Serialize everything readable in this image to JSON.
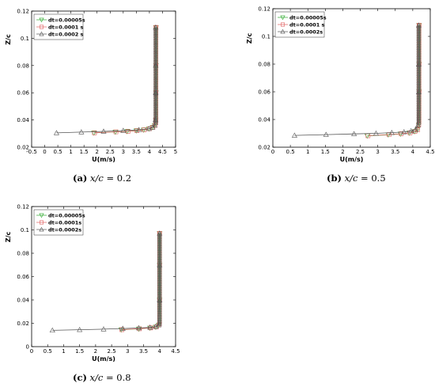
{
  "chart_data": [
    {
      "type": "scatter",
      "caption": {
        "tag": "(a)",
        "var": "x/c",
        "rest": " = 0.2"
      },
      "xlabel": "U(m/s)",
      "ylabel": "Z/c",
      "xlim": [
        -0.5,
        5
      ],
      "ylim": [
        0.02,
        0.12
      ],
      "xticks": [
        "-0.5",
        "0",
        "0.5",
        "1",
        "1.5",
        "2",
        "2.5",
        "3",
        "3.5",
        "4",
        "4.5",
        "5"
      ],
      "yticks": [
        "0.02",
        "0.04",
        "0.06",
        "0.08",
        "0.1",
        "0.12"
      ],
      "legend_position": "top-left",
      "series": [
        {
          "name": "dt=0.00005s",
          "color": "#2eaa2e",
          "marker": "triangle-down",
          "x": [
            1.88,
            2.7,
            3.15,
            3.5,
            3.78,
            3.98,
            4.12,
            4.2,
            4.24,
            4.25,
            4.25,
            4.25
          ],
          "y": [
            0.0305,
            0.0312,
            0.0316,
            0.0321,
            0.0327,
            0.0335,
            0.0345,
            0.036,
            0.04,
            0.06,
            0.08,
            0.108
          ]
        },
        {
          "name": "dt=0.0001 s",
          "color": "#e06060",
          "marker": "square",
          "x": [
            1.9,
            2.72,
            3.18,
            3.52,
            3.8,
            4.0,
            4.13,
            4.21,
            4.24,
            4.25,
            4.25,
            4.25
          ],
          "y": [
            0.0306,
            0.0313,
            0.0317,
            0.0322,
            0.0328,
            0.0336,
            0.0346,
            0.036,
            0.04,
            0.06,
            0.08,
            0.108
          ]
        },
        {
          "name": "dt=0.0002 s",
          "color": "#555555",
          "marker": "triangle",
          "x": [
            0.45,
            1.4,
            2.25,
            3.0,
            3.6,
            3.98,
            4.12,
            4.2,
            4.23,
            4.24,
            4.24,
            4.24
          ],
          "y": [
            0.0305,
            0.0311,
            0.0316,
            0.0322,
            0.0328,
            0.0336,
            0.0346,
            0.036,
            0.04,
            0.06,
            0.08,
            0.108
          ]
        }
      ]
    },
    {
      "type": "scatter",
      "caption": {
        "tag": "(b)",
        "var": "x/c",
        "rest": " = 0.5"
      },
      "xlabel": "U(m/s)",
      "ylabel": "Z/c",
      "xlim": [
        0,
        4.5
      ],
      "ylim": [
        0.02,
        0.12
      ],
      "xticks": [
        "0",
        "0.5",
        "1",
        "1.5",
        "2",
        "2.5",
        "3",
        "3.5",
        "4",
        "4.5"
      ],
      "yticks": [
        "0.02",
        "0.04",
        "0.06",
        "0.08",
        "0.1",
        "0.12"
      ],
      "legend_position": "top-left",
      "series": [
        {
          "name": "dt=0.00005s",
          "color": "#2eaa2e",
          "marker": "triangle-down",
          "x": [
            2.7,
            3.3,
            3.65,
            3.9,
            4.05,
            4.13,
            4.17,
            4.18,
            4.18,
            4.18
          ],
          "y": [
            0.0282,
            0.029,
            0.0296,
            0.0303,
            0.0313,
            0.0325,
            0.036,
            0.06,
            0.08,
            0.108
          ]
        },
        {
          "name": "dt=0.0001 s",
          "color": "#e06060",
          "marker": "square",
          "x": [
            2.72,
            3.32,
            3.67,
            3.92,
            4.06,
            4.14,
            4.17,
            4.18,
            4.18,
            4.18
          ],
          "y": [
            0.0283,
            0.0291,
            0.0297,
            0.0304,
            0.0314,
            0.0326,
            0.036,
            0.06,
            0.08,
            0.108
          ]
        },
        {
          "name": "dt=0.0002s",
          "color": "#555555",
          "marker": "triangle",
          "x": [
            0.62,
            1.52,
            2.32,
            2.95,
            3.4,
            3.75,
            3.95,
            4.08,
            4.15,
            4.17,
            4.17,
            4.17
          ],
          "y": [
            0.0285,
            0.0291,
            0.0296,
            0.03,
            0.0305,
            0.031,
            0.0317,
            0.0328,
            0.036,
            0.06,
            0.08,
            0.108
          ]
        }
      ]
    },
    {
      "type": "scatter",
      "caption": {
        "tag": "(c)",
        "var": "x/c",
        "rest": " = 0.8"
      },
      "xlabel": "U(m/s)",
      "ylabel": "Z/c",
      "xlim": [
        0,
        4.5
      ],
      "ylim": [
        0,
        0.12
      ],
      "xticks": [
        "0",
        "0.5",
        "1",
        "1.5",
        "2",
        "2.5",
        "3",
        "3.5",
        "4",
        "4.5"
      ],
      "yticks": [
        "0",
        "0.02",
        "0.04",
        "0.06",
        "0.08",
        "0.1",
        "0.12"
      ],
      "legend_position": "top-left",
      "series": [
        {
          "name": "dt=0.00005s",
          "color": "#2eaa2e",
          "marker": "triangle-down",
          "x": [
            2.8,
            3.35,
            3.7,
            3.88,
            3.97,
            4.0,
            4.0,
            4.0
          ],
          "y": [
            0.0145,
            0.0152,
            0.016,
            0.0168,
            0.0185,
            0.04,
            0.07,
            0.097
          ]
        },
        {
          "name": "dt=0.0001s",
          "color": "#e06060",
          "marker": "square",
          "x": [
            2.82,
            3.37,
            3.72,
            3.9,
            3.98,
            4.0,
            4.0,
            4.0
          ],
          "y": [
            0.0146,
            0.0153,
            0.0161,
            0.0169,
            0.0186,
            0.04,
            0.07,
            0.097
          ]
        },
        {
          "name": "dt=0.0002s",
          "color": "#555555",
          "marker": "triangle",
          "x": [
            0.65,
            1.5,
            2.25,
            2.85,
            3.35,
            3.7,
            3.88,
            3.97,
            4.0,
            4.0,
            4.0
          ],
          "y": [
            0.014,
            0.0145,
            0.015,
            0.0155,
            0.016,
            0.0165,
            0.0172,
            0.0185,
            0.04,
            0.07,
            0.097
          ]
        }
      ]
    }
  ]
}
